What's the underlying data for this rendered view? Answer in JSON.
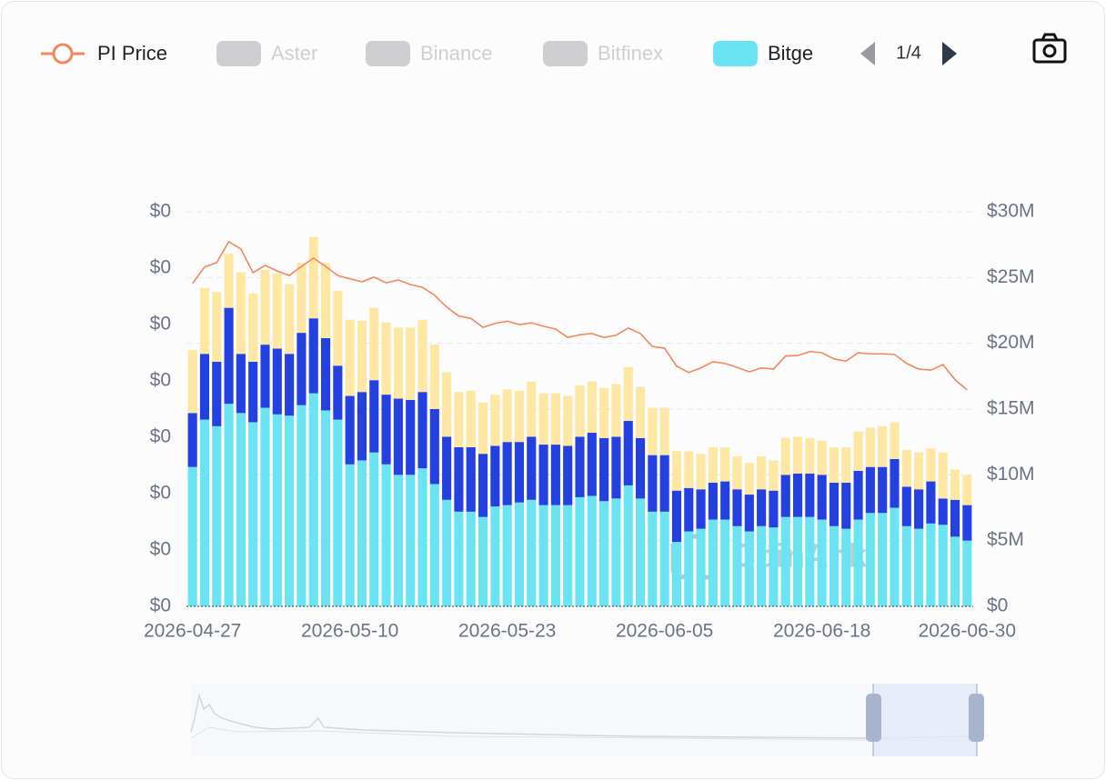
{
  "chart_data": {
    "type": "bar",
    "legend_page": "1/4",
    "watermark": "CoinAnk",
    "categories": [
      "2026-04-27",
      null,
      null,
      null,
      null,
      null,
      null,
      null,
      null,
      null,
      null,
      null,
      null,
      "2026-05-10",
      null,
      null,
      null,
      null,
      null,
      null,
      null,
      null,
      null,
      null,
      null,
      null,
      "2026-05-23",
      null,
      null,
      null,
      null,
      null,
      null,
      null,
      null,
      null,
      null,
      null,
      null,
      "2026-06-05",
      null,
      null,
      null,
      null,
      null,
      null,
      null,
      null,
      null,
      null,
      null,
      null,
      "2026-06-18",
      null,
      null,
      null,
      null,
      null,
      null,
      null,
      null,
      null,
      null,
      null,
      "2026-06-30"
    ],
    "ylim": [
      0,
      0.7
    ],
    "yticks": [
      {
        "value": 0,
        "label": "$0"
      },
      {
        "value": 0.1,
        "label": "$0"
      },
      {
        "value": 0.2,
        "label": "$0"
      },
      {
        "value": 0.3,
        "label": "$0"
      },
      {
        "value": 0.4,
        "label": "$0"
      },
      {
        "value": 0.5,
        "label": "$0"
      },
      {
        "value": 0.6,
        "label": "$0"
      },
      {
        "value": 0.7,
        "label": "$0"
      }
    ],
    "y2lim": [
      0,
      30000000
    ],
    "y2ticks": [
      {
        "value": 0,
        "label": "$0"
      },
      {
        "value": 5000000,
        "label": "$5M"
      },
      {
        "value": 10000000,
        "label": "$10M"
      },
      {
        "value": 15000000,
        "label": "$15M"
      },
      {
        "value": 20000000,
        "label": "$20M"
      },
      {
        "value": 25000000,
        "label": "$25M"
      },
      {
        "value": 30000000,
        "label": "$30M"
      }
    ],
    "grid": true,
    "stacked": true,
    "series": [
      {
        "name": "PI Price",
        "type": "line",
        "color": "#f4875a",
        "axis": "y",
        "values": [
          0.573,
          0.602,
          0.61,
          0.647,
          0.634,
          0.592,
          0.605,
          0.595,
          0.587,
          0.603,
          0.618,
          0.603,
          0.587,
          0.581,
          0.576,
          0.584,
          0.574,
          0.579,
          0.571,
          0.566,
          0.552,
          0.531,
          0.515,
          0.511,
          0.495,
          0.502,
          0.506,
          0.5,
          0.503,
          0.497,
          0.492,
          0.477,
          0.482,
          0.484,
          0.477,
          0.481,
          0.494,
          0.484,
          0.461,
          0.458,
          0.426,
          0.415,
          0.423,
          0.434,
          0.431,
          0.424,
          0.416,
          0.423,
          0.421,
          0.444,
          0.445,
          0.452,
          0.45,
          0.439,
          0.435,
          0.45,
          0.448,
          0.448,
          0.447,
          0.431,
          0.421,
          0.419,
          0.429,
          0.402,
          0.384
        ]
      },
      {
        "name": "Aster",
        "hidden": true
      },
      {
        "name": "Binance",
        "hidden": true
      },
      {
        "name": "Bitfinex",
        "hidden": true
      },
      {
        "name": "Bitge",
        "color": "#6ae3f3",
        "axis": "y2",
        "values": [
          10600000,
          14200000,
          13700000,
          15400000,
          14700000,
          14000000,
          15100000,
          14600000,
          14500000,
          15300000,
          16200000,
          14900000,
          14200000,
          10800000,
          11100000,
          11700000,
          10800000,
          10000000,
          10000000,
          10500000,
          9300000,
          8100000,
          7200000,
          7200000,
          6800000,
          7600000,
          7700000,
          7900000,
          8100000,
          7700000,
          7700000,
          7700000,
          8300000,
          8400000,
          8000000,
          8200000,
          9200000,
          8200000,
          7200000,
          7200000,
          4900000,
          5700000,
          5900000,
          6600000,
          6600000,
          6100000,
          5700000,
          6100000,
          6000000,
          6800000,
          6800000,
          6800000,
          6600000,
          6100000,
          5900000,
          6600000,
          7100000,
          7100000,
          7500000,
          6100000,
          5900000,
          6300000,
          6200000,
          5300000,
          5000000
        ]
      },
      {
        "color": "#2440e0",
        "axis": "y2",
        "values": [
          4100000,
          5000000,
          4900000,
          7300000,
          4500000,
          4600000,
          4800000,
          5000000,
          4700000,
          5500000,
          5700000,
          5500000,
          4100000,
          5200000,
          5200000,
          5500000,
          5300000,
          5800000,
          5700000,
          5800000,
          5700000,
          4800000,
          4900000,
          4900000,
          4800000,
          4600000,
          4800000,
          4600000,
          4800000,
          4600000,
          4600000,
          4500000,
          4600000,
          4800000,
          4800000,
          4700000,
          4900000,
          4600000,
          4300000,
          4300000,
          3900000,
          3300000,
          3000000,
          2800000,
          2900000,
          2800000,
          2800000,
          2800000,
          2800000,
          3200000,
          3300000,
          3300000,
          3400000,
          3300000,
          3500000,
          3700000,
          3500000,
          3500000,
          3700000,
          3000000,
          3000000,
          3200000,
          2000000,
          2800000,
          2700000
        ]
      },
      {
        "color": "#fde7a3",
        "axis": "y2",
        "values": [
          4800000,
          5000000,
          5300000,
          4100000,
          6200000,
          5200000,
          5700000,
          5700000,
          5300000,
          5300000,
          6200000,
          5700000,
          5700000,
          5800000,
          5400000,
          5500000,
          5500000,
          5400000,
          5500000,
          5500000,
          4900000,
          4900000,
          4200000,
          4300000,
          3900000,
          3900000,
          4000000,
          3900000,
          4200000,
          3900000,
          3900000,
          3800000,
          3900000,
          3900000,
          3800000,
          4000000,
          4100000,
          3900000,
          3600000,
          3600000,
          3000000,
          2800000,
          2700000,
          2700000,
          2600000,
          2500000,
          2400000,
          2500000,
          2300000,
          2800000,
          2800000,
          2700000,
          2600000,
          2700000,
          2700000,
          3000000,
          3000000,
          3100000,
          2800000,
          2800000,
          2800000,
          2500000,
          3500000,
          2300000,
          2300000
        ]
      }
    ]
  }
}
